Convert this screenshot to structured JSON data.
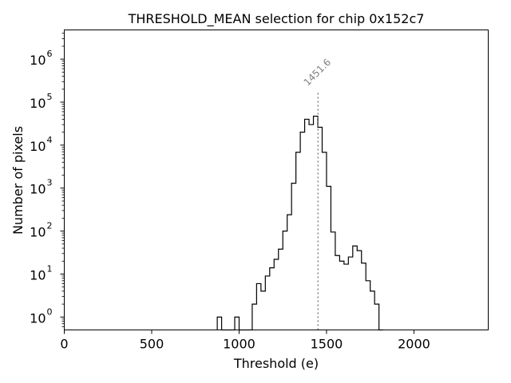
{
  "chart_data": {
    "type": "histogram",
    "title": "THRESHOLD_MEAN selection for chip 0x152c7",
    "xlabel": "Threshold (e)",
    "ylabel": "Number of pixels",
    "xlim": [
      0,
      2425
    ],
    "ylim_log10": [
      -0.3,
      6.68
    ],
    "yscale": "log",
    "x_ticks": [
      0,
      500,
      1000,
      1500,
      2000
    ],
    "x_tick_labels": [
      "0",
      "500",
      "1000",
      "1500",
      "2000"
    ],
    "y_ticks_log10": [
      0,
      1,
      2,
      3,
      4,
      5,
      6
    ],
    "y_tick_bases": [
      "10",
      "10",
      "10",
      "10",
      "10",
      "10",
      "10"
    ],
    "y_tick_exponents": [
      "0",
      "1",
      "2",
      "3",
      "4",
      "5",
      "6"
    ],
    "bin_width": 25,
    "bins": [
      {
        "x0": 875,
        "count": 1
      },
      {
        "x0": 900,
        "count": 0
      },
      {
        "x0": 925,
        "count": 0
      },
      {
        "x0": 950,
        "count": 0
      },
      {
        "x0": 975,
        "count": 1
      },
      {
        "x0": 1000,
        "count": 0
      },
      {
        "x0": 1025,
        "count": 0
      },
      {
        "x0": 1050,
        "count": 0
      },
      {
        "x0": 1075,
        "count": 2
      },
      {
        "x0": 1100,
        "count": 6
      },
      {
        "x0": 1125,
        "count": 4
      },
      {
        "x0": 1150,
        "count": 9
      },
      {
        "x0": 1175,
        "count": 14
      },
      {
        "x0": 1200,
        "count": 22
      },
      {
        "x0": 1225,
        "count": 38
      },
      {
        "x0": 1250,
        "count": 100
      },
      {
        "x0": 1275,
        "count": 240
      },
      {
        "x0": 1300,
        "count": 1300
      },
      {
        "x0": 1325,
        "count": 6800
      },
      {
        "x0": 1350,
        "count": 20000
      },
      {
        "x0": 1375,
        "count": 40000
      },
      {
        "x0": 1400,
        "count": 30000
      },
      {
        "x0": 1425,
        "count": 47000
      },
      {
        "x0": 1450,
        "count": 26000
      },
      {
        "x0": 1475,
        "count": 6800
      },
      {
        "x0": 1500,
        "count": 1100
      },
      {
        "x0": 1525,
        "count": 95
      },
      {
        "x0": 1550,
        "count": 27
      },
      {
        "x0": 1575,
        "count": 20
      },
      {
        "x0": 1600,
        "count": 17
      },
      {
        "x0": 1625,
        "count": 25
      },
      {
        "x0": 1650,
        "count": 45
      },
      {
        "x0": 1675,
        "count": 35
      },
      {
        "x0": 1700,
        "count": 18
      },
      {
        "x0": 1725,
        "count": 7
      },
      {
        "x0": 1750,
        "count": 4
      },
      {
        "x0": 1775,
        "count": 2
      },
      {
        "x0": 1800,
        "count": 0
      }
    ],
    "vline": {
      "x": 1451.6,
      "label": "1451.6",
      "top_count": 180000,
      "style": "dotted",
      "color": "#808080"
    },
    "grid": false,
    "legend": "none"
  }
}
